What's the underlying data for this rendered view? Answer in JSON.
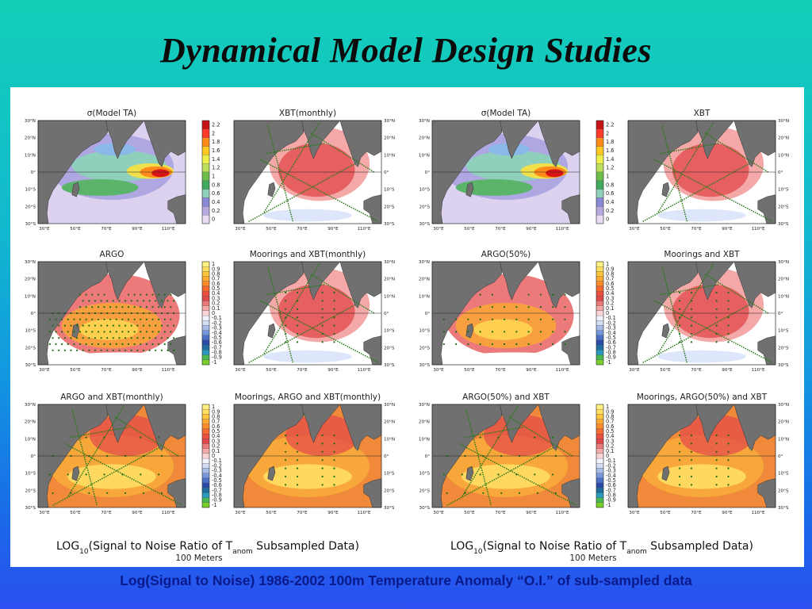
{
  "slide": {
    "title": "Dynamical Model Design Studies",
    "caption": "Log(Signal to Noise) 1986-2002 100m Temperature Anomaly “O.I.” of sub-sampled data"
  },
  "lon_ticks": [
    "30°E",
    "50°E",
    "70°E",
    "90°E",
    "110°E"
  ],
  "lat_ticks": [
    "30°N",
    "20°N",
    "10°N",
    "0°",
    "10°S",
    "20°S",
    "30°S"
  ],
  "colorbars": {
    "sigma": {
      "ticks": [
        "2.2",
        "2",
        "1.8",
        "1.6",
        "1.4",
        "1.2",
        "1",
        "0.8",
        "0.6",
        "0.4",
        "0.2",
        "0"
      ],
      "colors": [
        "#c81414",
        "#ff3a2a",
        "#ff8c1a",
        "#ffc820",
        "#f0f04a",
        "#bde05a",
        "#6cc04a",
        "#42a85c",
        "#8fd0b8",
        "#8a8ad8",
        "#b8a8e0",
        "#e8dcf4"
      ]
    },
    "snr": {
      "ticks": [
        "1",
        "0.9",
        "0.8",
        "0.7",
        "0.6",
        "0.5",
        "0.4",
        "0.3",
        "0.2",
        "0.1",
        "0",
        "-0.1",
        "-0.2",
        "-0.3",
        "-0.4",
        "-0.5",
        "-0.6",
        "-0.7",
        "-0.8",
        "-0.9",
        "-1"
      ],
      "colors": [
        "#fff080",
        "#ffe060",
        "#ffc83c",
        "#ffaa30",
        "#ff8c2a",
        "#f86a30",
        "#ee5040",
        "#e2484a",
        "#ec7a7a",
        "#f4a8a8",
        "#fad4d4",
        "#f4f4ff",
        "#d4def4",
        "#a8bce8",
        "#7898dc",
        "#4a70c8",
        "#2a4aa8",
        "#206ea0",
        "#2a9ac0",
        "#4ab850",
        "#7ad02a"
      ]
    }
  },
  "figures": [
    {
      "footer_main": "LOG",
      "footer_sub10": "10",
      "footer_mid": "(Signal to Noise Ratio of T",
      "footer_anom": "anom",
      "footer_end": " Subsampled Data)",
      "depth": "100 Meters",
      "panels": [
        {
          "title": "σ(Model TA)",
          "kind": "sigma",
          "dots": "none"
        },
        {
          "title": "XBT(monthly)",
          "kind": "snr",
          "dots": "xbt"
        },
        {
          "title": "ARGO",
          "kind": "snr",
          "dots": "argo"
        },
        {
          "title": "Moorings and XBT(monthly)",
          "kind": "snr",
          "dots": "moorxbt"
        },
        {
          "title": "ARGO and XBT(monthly)",
          "kind": "snr",
          "dots": "argoxbt"
        },
        {
          "title": "Moorings, ARGO and XBT(monthly)",
          "kind": "snr",
          "dots": "moor"
        }
      ]
    },
    {
      "footer_main": "LOG",
      "footer_sub10": "10",
      "footer_mid": "(Signal to Noise Ratio of T",
      "footer_anom": "anom",
      "footer_end": " Subsampled Data)",
      "depth": "100 Meters",
      "panels": [
        {
          "title": "σ(Model TA)",
          "kind": "sigma",
          "dots": "none"
        },
        {
          "title": "XBT",
          "kind": "snr",
          "dots": "xbt"
        },
        {
          "title": "ARGO(50%)",
          "kind": "snr",
          "dots": "argo50"
        },
        {
          "title": "Moorings and XBT",
          "kind": "snr",
          "dots": "moorxbt"
        },
        {
          "title": "ARGO(50%) and XBT",
          "kind": "snr",
          "dots": "argoxbt"
        },
        {
          "title": "Moorings, ARGO(50%) and XBT",
          "kind": "snr",
          "dots": "moor"
        }
      ]
    }
  ]
}
